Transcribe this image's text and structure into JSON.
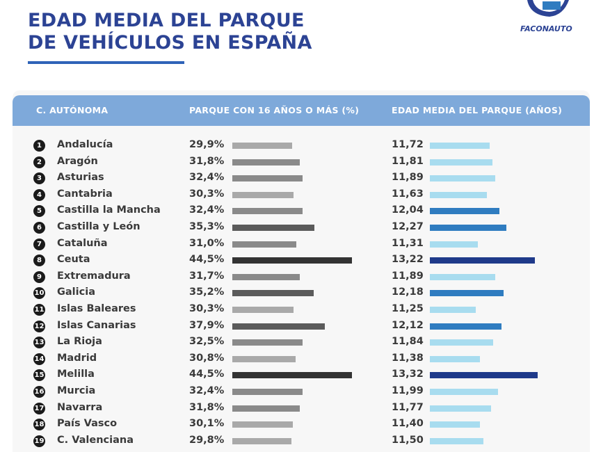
{
  "chart_data": {
    "type": "bar",
    "title_line1": "EDAD MEDIA DEL PARQUE",
    "title_line2": "DE VEHÍCULOS EN ESPAÑA",
    "columns": [
      "C. AUTÓNOMA",
      "PARQUE CON 16 AÑOS O MÁS (%)",
      "EDAD MEDIA DEL PARQUE (AÑOS)"
    ],
    "categories": [
      "Andalucía",
      "Aragón",
      "Asturias",
      "Cantabria",
      "Castilla la Mancha",
      "Castilla y León",
      "Cataluña",
      "Ceuta",
      "Extremadura",
      "Galicia",
      "Islas Baleares",
      "Islas Canarias",
      "La Rioja",
      "Madrid",
      "Melilla",
      "Murcia",
      "Navarra",
      "País Vasco",
      "C. Valenciana"
    ],
    "series": [
      {
        "name": "PARQUE CON 16 AÑOS O MÁS (%)",
        "values": [
          29.9,
          31.8,
          32.4,
          30.3,
          32.4,
          35.3,
          31.0,
          44.5,
          31.7,
          35.2,
          30.3,
          37.9,
          32.5,
          30.8,
          44.5,
          32.4,
          31.8,
          30.1,
          29.8
        ],
        "labels": [
          "29,9%",
          "31,8%",
          "32,4%",
          "30,3%",
          "32,4%",
          "35,3%",
          "31,0%",
          "44,5%",
          "31,7%",
          "35,2%",
          "30,3%",
          "37,9%",
          "32,5%",
          "30,8%",
          "44,5%",
          "32,4%",
          "31,8%",
          "30,1%",
          "29,8%"
        ]
      },
      {
        "name": "EDAD MEDIA DEL PARQUE (AÑOS)",
        "values": [
          11.72,
          11.81,
          11.89,
          11.63,
          12.04,
          12.27,
          11.31,
          13.22,
          11.89,
          12.18,
          11.25,
          12.12,
          11.84,
          11.38,
          13.32,
          11.99,
          11.77,
          11.4,
          11.5
        ],
        "labels": [
          "11,72",
          "11,81",
          "11,89",
          "11,63",
          "12,04",
          "12,27",
          "11,31",
          "13,22",
          "11,89",
          "12,18",
          "11,25",
          "12,12",
          "11,84",
          "11,38",
          "13,32",
          "11,99",
          "11,77",
          "11,40",
          "11,50"
        ]
      }
    ],
    "colors": {
      "grey_light": "#a9a9a9",
      "grey_mid": "#8a8a8a",
      "grey_dark": "#5b5b5b",
      "grey_darkest": "#333333",
      "blue_light": "#a8dcef",
      "blue_mid": "#2f7cc0",
      "blue_dark": "#1f3a8a",
      "header": "#7ea9da",
      "title": "#2c4394"
    }
  },
  "logo": {
    "text": "FACONAUTO"
  }
}
